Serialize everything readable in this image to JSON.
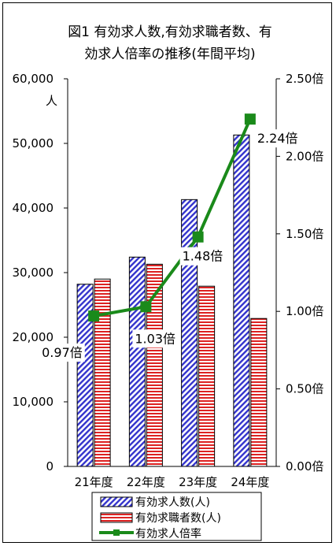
{
  "chart_data": {
    "type": "bar",
    "title_lines": [
      "図1 有効求人数,有効求職者数、有",
      "効求人倍率の推移(年間平均)"
    ],
    "categories": [
      "21年度",
      "22年度",
      "23年度",
      "24年度"
    ],
    "left_axis": {
      "unit_label": "人",
      "ylim": [
        0,
        60000
      ],
      "ticks": [
        "0",
        "10,000",
        "20,000",
        "30,000",
        "40,000",
        "50,000",
        "60,000"
      ]
    },
    "right_axis": {
      "ylim": [
        0,
        2.5
      ],
      "ticks": [
        "0.00倍",
        "0.50倍",
        "1.00倍",
        "1.50倍",
        "2.00倍",
        "2.50倍"
      ]
    },
    "series": [
      {
        "name": "有効求人数(人)",
        "kind": "bar",
        "axis": "left",
        "values": [
          28200,
          32400,
          41300,
          51300
        ],
        "color": "#3333cc",
        "pattern": "diagonal"
      },
      {
        "name": "有効求職者数(人)",
        "kind": "bar",
        "axis": "left",
        "values": [
          29000,
          31300,
          27900,
          22900
        ],
        "color": "#cc0000",
        "pattern": "horizontal"
      },
      {
        "name": "有効求人倍率",
        "kind": "line",
        "axis": "right",
        "values": [
          0.97,
          1.03,
          1.48,
          2.24
        ],
        "labels": [
          "0.97倍",
          "1.03倍",
          "1.48倍",
          "2.24倍"
        ],
        "color": "#1a8a1a"
      }
    ],
    "grid": false,
    "legend_position": "bottom"
  }
}
